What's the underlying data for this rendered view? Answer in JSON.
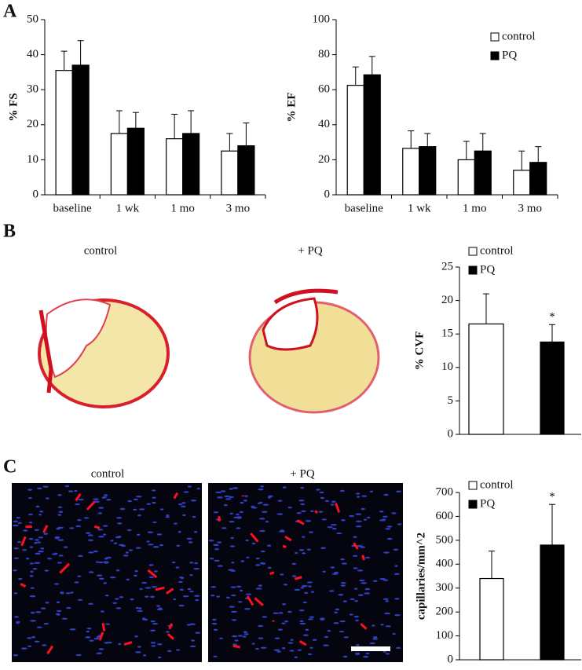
{
  "panel_labels": [
    "A",
    "B",
    "C"
  ],
  "image_captions": {
    "B": [
      "control",
      "+ PQ"
    ],
    "C": [
      "control",
      "+ PQ"
    ]
  },
  "chart_data": [
    {
      "type": "bar",
      "y_label": "% FS",
      "categories": [
        "baseline",
        "1 wk",
        "1 mo",
        "3 mo"
      ],
      "series": [
        {
          "name": "control",
          "color": "#ffffff",
          "values": [
            35.5,
            17.5,
            16,
            12.5
          ],
          "errors": [
            5.5,
            6.5,
            7,
            5
          ]
        },
        {
          "name": "PQ",
          "color": "#000000",
          "values": [
            37,
            19,
            17.5,
            14
          ],
          "errors": [
            7,
            4.5,
            6.5,
            6.5
          ]
        }
      ],
      "ylim": [
        0,
        50
      ],
      "yticks": [
        0,
        10,
        20,
        30,
        40,
        50
      ],
      "legend": false
    },
    {
      "type": "bar",
      "y_label": "% EF",
      "categories": [
        "baseline",
        "1 wk",
        "1 mo",
        "3 mo"
      ],
      "series": [
        {
          "name": "control",
          "color": "#ffffff",
          "values": [
            62.5,
            26.5,
            20,
            14
          ],
          "errors": [
            10.5,
            10,
            10.5,
            11
          ]
        },
        {
          "name": "PQ",
          "color": "#000000",
          "values": [
            68.5,
            27.5,
            25,
            18.5
          ],
          "errors": [
            10.5,
            7.5,
            10,
            9
          ]
        }
      ],
      "ylim": [
        0,
        100
      ],
      "yticks": [
        0,
        20,
        40,
        60,
        80,
        100
      ],
      "legend": "upper right"
    },
    {
      "type": "bar",
      "y_label": "% CVF",
      "categories": [
        null
      ],
      "series": [
        {
          "name": "control",
          "color": "#ffffff",
          "values": [
            16.5
          ],
          "errors": [
            4.5
          ]
        },
        {
          "name": "PQ",
          "color": "#000000",
          "values": [
            13.8
          ],
          "errors": [
            2.6
          ]
        }
      ],
      "ylim": [
        0,
        25
      ],
      "yticks": [
        0,
        5,
        10,
        15,
        20,
        25
      ],
      "legend": "upper left",
      "annotation": "*"
    },
    {
      "type": "bar",
      "y_label": "capillaries/mm^2",
      "categories": [
        null
      ],
      "series": [
        {
          "name": "control",
          "color": "#ffffff",
          "values": [
            340
          ],
          "errors": [
            115
          ]
        },
        {
          "name": "PQ",
          "color": "#000000",
          "values": [
            480
          ],
          "errors": [
            170
          ]
        }
      ],
      "ylim": [
        0,
        700
      ],
      "yticks": [
        0,
        100,
        200,
        300,
        400,
        500,
        600,
        700
      ],
      "legend": "upper left",
      "annotation": "*"
    }
  ]
}
